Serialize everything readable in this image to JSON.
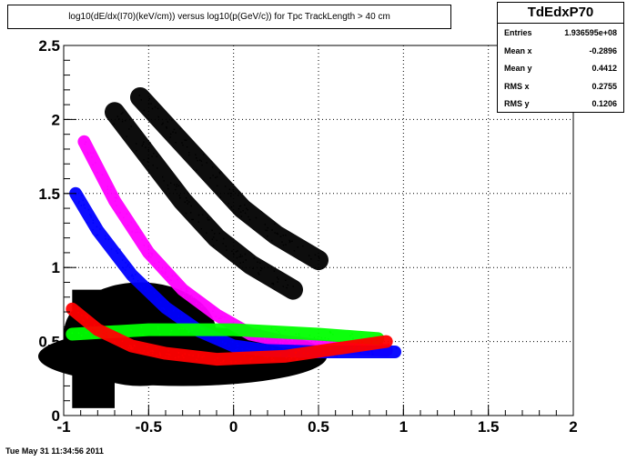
{
  "chart_data": {
    "type": "heatmap",
    "title": "log10(dE/dx(I70)(keV/cm)) versus log10(p(GeV/c)) for Tpc TrackLength > 40 cm",
    "xlabel": "",
    "ylabel": "",
    "xlim": [
      -1,
      2
    ],
    "ylim": [
      0,
      2.5
    ],
    "x_ticks": [
      "-1",
      "-0.5",
      "0",
      "0.5",
      "1",
      "1.5",
      "2"
    ],
    "y_ticks": [
      "0",
      "0.5",
      "1",
      "1.5",
      "2",
      "2.5"
    ],
    "grid": true,
    "stats": {
      "name": "TdEdxP70",
      "rows": [
        {
          "label": "Entries",
          "value": "1.936595e+08"
        },
        {
          "label": "Mean x",
          "value": "-0.2896"
        },
        {
          "label": "Mean y",
          "value": "0.4412"
        },
        {
          "label": "RMS x",
          "value": "0.2755"
        },
        {
          "label": "RMS y",
          "value": "0.1206"
        }
      ]
    },
    "bands": [
      {
        "color": "#000000",
        "points": [
          [
            -0.95,
            0.35
          ],
          [
            -0.5,
            0.4
          ],
          [
            0,
            0.45
          ],
          [
            0.5,
            0.48
          ],
          [
            0.9,
            0.45
          ]
        ]
      },
      {
        "color": "#ff00ff",
        "points": [
          [
            -0.88,
            1.85
          ],
          [
            -0.7,
            1.45
          ],
          [
            -0.5,
            1.1
          ],
          [
            -0.3,
            0.85
          ],
          [
            -0.1,
            0.68
          ],
          [
            0.1,
            0.55
          ],
          [
            0.3,
            0.5
          ],
          [
            0.6,
            0.46
          ],
          [
            0.9,
            0.44
          ]
        ]
      },
      {
        "color": "#0000ff",
        "points": [
          [
            -0.93,
            1.5
          ],
          [
            -0.8,
            1.25
          ],
          [
            -0.6,
            0.95
          ],
          [
            -0.4,
            0.73
          ],
          [
            -0.2,
            0.57
          ],
          [
            0,
            0.47
          ],
          [
            0.2,
            0.44
          ],
          [
            0.5,
            0.43
          ],
          [
            0.95,
            0.43
          ]
        ]
      },
      {
        "color": "#00ff00",
        "points": [
          [
            -0.95,
            0.55
          ],
          [
            -0.5,
            0.58
          ],
          [
            0,
            0.58
          ],
          [
            0.5,
            0.55
          ],
          [
            0.85,
            0.52
          ]
        ]
      },
      {
        "color": "#ff0000",
        "points": [
          [
            -0.95,
            0.72
          ],
          [
            -0.8,
            0.58
          ],
          [
            -0.6,
            0.47
          ],
          [
            -0.4,
            0.42
          ],
          [
            -0.1,
            0.38
          ],
          [
            0.3,
            0.4
          ],
          [
            0.6,
            0.45
          ],
          [
            0.9,
            0.5
          ]
        ]
      },
      {
        "color": "#000000",
        "points": [
          [
            -0.7,
            2.05
          ],
          [
            -0.5,
            1.75
          ],
          [
            -0.3,
            1.45
          ],
          [
            -0.1,
            1.2
          ],
          [
            0.1,
            1.02
          ],
          [
            0.35,
            0.85
          ]
        ]
      },
      {
        "color": "#000000",
        "points": [
          [
            -0.55,
            2.15
          ],
          [
            -0.35,
            1.9
          ],
          [
            -0.15,
            1.65
          ],
          [
            0.05,
            1.4
          ],
          [
            0.25,
            1.22
          ],
          [
            0.5,
            1.05
          ]
        ]
      }
    ]
  },
  "footer": {
    "date": "Tue May 31 11:34:56 2011"
  }
}
